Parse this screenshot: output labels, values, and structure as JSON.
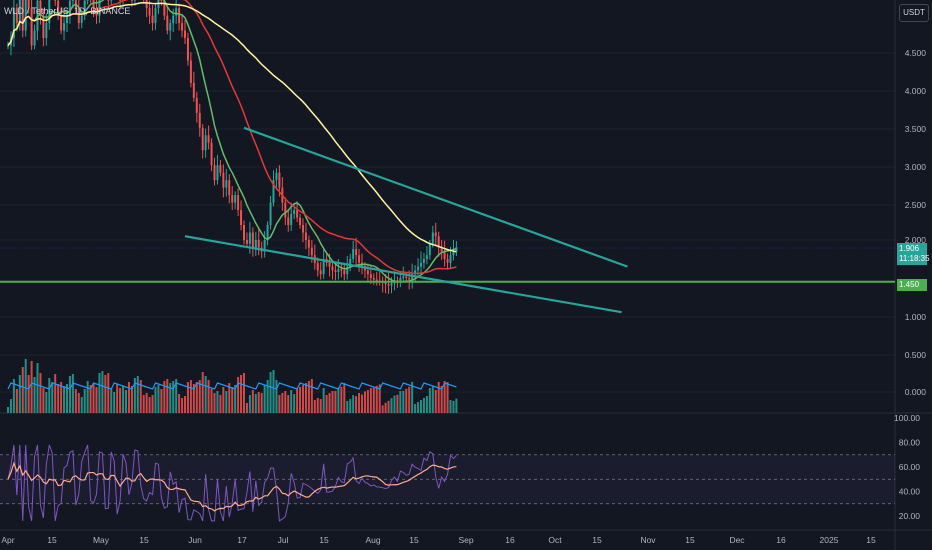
{
  "header": {
    "symbol": "WLD",
    "pair": "WLD / TetherUS, 1D, BINANCE",
    "currency": "USDT"
  },
  "price_tags": {
    "current_price": "1.906",
    "countdown": "11:18:35",
    "horizontal_level": "1.450"
  },
  "colors": {
    "background": "#131722",
    "up": "#26a69a",
    "down": "#ef5350",
    "sma_fast": "#66bb6a",
    "sma_mid": "#e53935",
    "sma_slow": "#fff59d",
    "trendline": "#26a69a",
    "horizontal_level": "#4caf50",
    "volume_ma": "#2196f3",
    "rsi_line": "#7e57c2",
    "rsi_ma": "#ffab91"
  },
  "chart_data": [
    {
      "type": "candlestick",
      "title": "WLD / TetherUS, 1D, BINANCE",
      "ylim": [
        0.0,
        5.4
      ],
      "y_ticks": [
        "4.500",
        "4.000",
        "3.500",
        "3.000",
        "2.500",
        "2.000",
        "1.000",
        "0.500",
        "0.000"
      ],
      "x_ticks": [
        "Apr",
        "15",
        "May",
        "15",
        "Jun",
        "17",
        "Jul",
        "15",
        "Aug",
        "15",
        "Sep",
        "16",
        "Oct",
        "15",
        "Nov",
        "15",
        "Dec",
        "16",
        "2025",
        "15"
      ],
      "ohlc_daily_approx": {
        "start": "2024-04-01",
        "closes": [
          4.6,
          4.7,
          5.1,
          4.9,
          5.3,
          4.8,
          5.4,
          5.1,
          4.6,
          4.8,
          5.2,
          5.0,
          4.7,
          4.9,
          5.3,
          5.6,
          5.2,
          5.0,
          4.8,
          4.9,
          5.0,
          5.2,
          5.4,
          5.1,
          4.9,
          5.0,
          5.2,
          5.5,
          5.3,
          5.1,
          5.0,
          5.3,
          5.6,
          5.4,
          5.2,
          5.5,
          5.7,
          5.4,
          5.2,
          5.4,
          5.5,
          5.3,
          5.2,
          5.4,
          5.6,
          5.5,
          5.3,
          5.1,
          5.0,
          4.9,
          5.1,
          5.3,
          5.2,
          5.0,
          4.8,
          4.9,
          5.0,
          5.1,
          4.9,
          4.8,
          4.7,
          4.4,
          4.1,
          3.9,
          3.7,
          3.5,
          3.2,
          3.4,
          3.3,
          3.0,
          2.8,
          3.0,
          2.9,
          2.7,
          2.8,
          2.6,
          2.5,
          2.6,
          2.4,
          2.2,
          2.0,
          1.95,
          2.1,
          1.9,
          2.0,
          1.9,
          1.85,
          2.0,
          2.2,
          2.5,
          2.8,
          2.9,
          2.7,
          2.5,
          2.3,
          2.2,
          2.35,
          2.4,
          2.3,
          2.2,
          2.1,
          2.0,
          1.9,
          1.8,
          1.7,
          1.6,
          1.55,
          1.75,
          1.7,
          1.65,
          1.6,
          1.58,
          1.62,
          1.6,
          1.55,
          1.65,
          1.75,
          1.88,
          1.8,
          1.7,
          1.66,
          1.6,
          1.55,
          1.5,
          1.48,
          1.46,
          1.45,
          1.44,
          1.42,
          1.4,
          1.43,
          1.47,
          1.45,
          1.5,
          1.52,
          1.5,
          1.48,
          1.55,
          1.6,
          1.65,
          1.7,
          1.75,
          1.8,
          1.95,
          2.1,
          2.05,
          1.9,
          1.85,
          1.75,
          1.7,
          1.8,
          1.85,
          1.906
        ]
      },
      "horizontal_level": 1.45,
      "trendlines": [
        {
          "name": "upper",
          "from": [
            "2024-06-20",
            3.5
          ],
          "to": [
            "2024-10-28",
            1.65
          ]
        },
        {
          "name": "lower",
          "from": [
            "2024-05-31",
            2.05
          ],
          "to": [
            "2024-10-26",
            1.05
          ]
        }
      ]
    },
    {
      "type": "bar",
      "title": "Volume",
      "note": "volume histogram with moving average, shown inside price pane"
    },
    {
      "type": "line",
      "title": "RSI",
      "ylim": [
        15,
        100
      ],
      "y_ticks": [
        "100.00",
        "80.00",
        "60.00",
        "40.00",
        "20.00"
      ],
      "bands": [
        30,
        70
      ],
      "midline": 50
    }
  ]
}
